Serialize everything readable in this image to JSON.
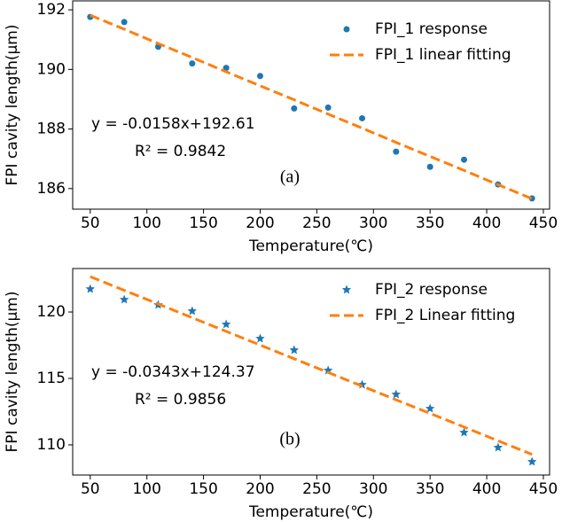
{
  "chart_data": [
    {
      "type": "scatter",
      "panel_label": "(a)",
      "x_label": "Temperature(℃)",
      "y_label": "FPI cavity length(μm)",
      "x": [
        50,
        80,
        110,
        140,
        170,
        200,
        230,
        260,
        290,
        320,
        350,
        380,
        410,
        440
      ],
      "series": [
        {
          "name": "FPI_1 response",
          "type": "scatter",
          "marker": "circle",
          "color": "#1f77b4",
          "values": [
            191.76,
            191.59,
            190.76,
            190.2,
            190.05,
            189.78,
            188.69,
            188.72,
            188.36,
            187.24,
            186.73,
            186.97,
            186.14,
            185.67
          ]
        },
        {
          "name": "FPI_1 linear fitting",
          "type": "line",
          "dashed": true,
          "color": "#ff7f0e",
          "values": [
            191.82,
            191.35,
            190.87,
            190.4,
            189.92,
            189.45,
            188.98,
            188.5,
            188.03,
            187.55,
            187.08,
            186.61,
            186.13,
            185.66
          ]
        }
      ],
      "annotations": [
        "y = -0.0158x+192.61",
        "R² = 0.9842"
      ],
      "xlim": [
        34.5,
        455.5
      ],
      "xticks": [
        50,
        100,
        150,
        200,
        250,
        300,
        350,
        400,
        450
      ],
      "ylim": [
        185.31,
        192.3
      ],
      "yticks": [
        186,
        188,
        190,
        192
      ],
      "grid": false,
      "legend": "upper right"
    },
    {
      "type": "scatter",
      "panel_label": "(b)",
      "x_label": "Temperature(℃)",
      "y_label": "FPI cavity length(μm)",
      "x": [
        50,
        80,
        110,
        140,
        170,
        200,
        230,
        260,
        290,
        320,
        350,
        380,
        410,
        440
      ],
      "series": [
        {
          "name": "FPI_2 response",
          "type": "scatter",
          "marker": "star",
          "color": "#1f77b4",
          "values": [
            121.73,
            120.93,
            120.53,
            120.07,
            119.07,
            118.0,
            117.13,
            115.6,
            114.53,
            113.8,
            112.73,
            110.93,
            109.8,
            108.73
          ]
        },
        {
          "name": "FPI_2 Linear fitting",
          "type": "line",
          "dashed": true,
          "color": "#ff7f0e",
          "values": [
            122.66,
            121.63,
            120.6,
            119.57,
            118.54,
            117.51,
            116.48,
            115.45,
            114.42,
            113.39,
            112.37,
            111.34,
            110.31,
            109.28
          ]
        }
      ],
      "annotations": [
        "y = -0.0343x+124.37",
        "R² = 0.9856"
      ],
      "xlim": [
        34.5,
        455.5
      ],
      "xticks": [
        50,
        100,
        150,
        200,
        250,
        300,
        350,
        400,
        450
      ],
      "ylim": [
        107.73,
        123.27
      ],
      "yticks": [
        110,
        115,
        120
      ],
      "grid": false,
      "legend": "upper right"
    }
  ]
}
